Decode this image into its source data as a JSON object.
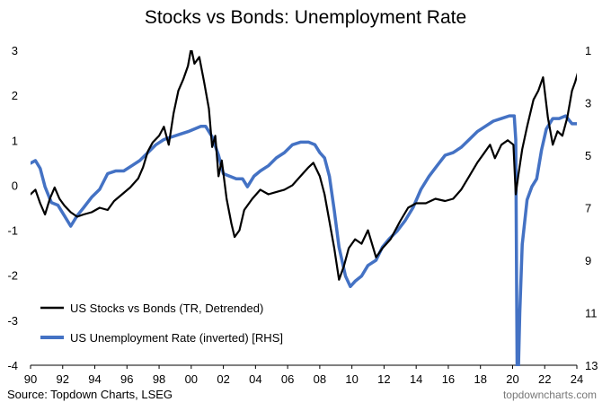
{
  "chart_data": {
    "type": "line",
    "title": "Stocks vs Bonds: Unemployment Rate",
    "source": "Source: Topdown Charts, LSEG",
    "brand": "topdowncharts.com",
    "xlim": [
      1990,
      2024
    ],
    "x_ticks": [
      1990,
      1992,
      1994,
      1996,
      1998,
      2000,
      2002,
      2004,
      2006,
      2008,
      2010,
      2012,
      2014,
      2016,
      2018,
      2020,
      2022,
      2024
    ],
    "x_tick_labels": [
      "90",
      "92",
      "94",
      "96",
      "98",
      "00",
      "02",
      "04",
      "06",
      "08",
      "10",
      "12",
      "14",
      "16",
      "18",
      "20",
      "22",
      "24"
    ],
    "ylim_left": [
      -4,
      3
    ],
    "y_ticks_left": [
      "3",
      "2",
      "1",
      "0",
      "-1",
      "-2",
      "-3",
      "-4"
    ],
    "ylim_right_inverted": [
      1,
      13
    ],
    "y_ticks_right": [
      "1",
      "3",
      "5",
      "7",
      "9",
      "11",
      "13"
    ],
    "grid": false,
    "legend_position": "bottom-left",
    "series": [
      {
        "name": "US Stocks vs Bonds (TR, Detrended)",
        "axis": "left",
        "color": "#000000",
        "points": [
          [
            1990.0,
            -0.2
          ],
          [
            1990.3,
            -0.1
          ],
          [
            1990.6,
            -0.4
          ],
          [
            1990.9,
            -0.65
          ],
          [
            1991.2,
            -0.3
          ],
          [
            1991.5,
            -0.05
          ],
          [
            1991.8,
            -0.3
          ],
          [
            1992.1,
            -0.45
          ],
          [
            1992.5,
            -0.6
          ],
          [
            1992.9,
            -0.7
          ],
          [
            1993.3,
            -0.65
          ],
          [
            1993.8,
            -0.6
          ],
          [
            1994.3,
            -0.5
          ],
          [
            1994.8,
            -0.55
          ],
          [
            1995.2,
            -0.35
          ],
          [
            1995.7,
            -0.2
          ],
          [
            1996.2,
            -0.05
          ],
          [
            1996.7,
            0.15
          ],
          [
            1997.0,
            0.4
          ],
          [
            1997.3,
            0.75
          ],
          [
            1997.6,
            0.95
          ],
          [
            1998.0,
            1.1
          ],
          [
            1998.3,
            1.3
          ],
          [
            1998.6,
            0.9
          ],
          [
            1998.9,
            1.6
          ],
          [
            1999.2,
            2.1
          ],
          [
            1999.5,
            2.35
          ],
          [
            1999.8,
            2.65
          ],
          [
            2000.0,
            3.05
          ],
          [
            2000.2,
            2.7
          ],
          [
            2000.5,
            2.85
          ],
          [
            2000.8,
            2.3
          ],
          [
            2001.1,
            1.7
          ],
          [
            2001.3,
            0.85
          ],
          [
            2001.5,
            1.1
          ],
          [
            2001.7,
            0.2
          ],
          [
            2001.9,
            0.55
          ],
          [
            2002.2,
            -0.3
          ],
          [
            2002.5,
            -0.85
          ],
          [
            2002.7,
            -1.15
          ],
          [
            2003.0,
            -1.0
          ],
          [
            2003.3,
            -0.55
          ],
          [
            2003.8,
            -0.3
          ],
          [
            2004.3,
            -0.1
          ],
          [
            2004.8,
            -0.2
          ],
          [
            2005.3,
            -0.15
          ],
          [
            2005.8,
            -0.1
          ],
          [
            2006.3,
            0.0
          ],
          [
            2006.8,
            0.2
          ],
          [
            2007.3,
            0.4
          ],
          [
            2007.6,
            0.5
          ],
          [
            2008.0,
            0.2
          ],
          [
            2008.3,
            -0.2
          ],
          [
            2008.6,
            -0.8
          ],
          [
            2008.9,
            -1.4
          ],
          [
            2009.2,
            -2.1
          ],
          [
            2009.5,
            -1.8
          ],
          [
            2009.8,
            -1.4
          ],
          [
            2010.2,
            -1.2
          ],
          [
            2010.6,
            -1.3
          ],
          [
            2011.0,
            -1.0
          ],
          [
            2011.5,
            -1.6
          ],
          [
            2011.9,
            -1.4
          ],
          [
            2012.4,
            -1.2
          ],
          [
            2013.0,
            -0.8
          ],
          [
            2013.5,
            -0.5
          ],
          [
            2014.0,
            -0.4
          ],
          [
            2014.6,
            -0.4
          ],
          [
            2015.2,
            -0.3
          ],
          [
            2015.8,
            -0.35
          ],
          [
            2016.3,
            -0.3
          ],
          [
            2016.8,
            -0.1
          ],
          [
            2017.3,
            0.2
          ],
          [
            2017.8,
            0.5
          ],
          [
            2018.2,
            0.7
          ],
          [
            2018.6,
            0.9
          ],
          [
            2018.9,
            0.6
          ],
          [
            2019.3,
            0.9
          ],
          [
            2019.7,
            1.0
          ],
          [
            2020.05,
            0.9
          ],
          [
            2020.2,
            -0.2
          ],
          [
            2020.35,
            0.2
          ],
          [
            2020.6,
            0.8
          ],
          [
            2020.9,
            1.3
          ],
          [
            2021.3,
            1.9
          ],
          [
            2021.6,
            2.1
          ],
          [
            2021.9,
            2.4
          ],
          [
            2022.2,
            1.5
          ],
          [
            2022.5,
            0.9
          ],
          [
            2022.8,
            1.2
          ],
          [
            2023.1,
            1.1
          ],
          [
            2023.4,
            1.5
          ],
          [
            2023.7,
            2.1
          ],
          [
            2023.9,
            2.3
          ],
          [
            2024.1,
            2.55
          ]
        ]
      },
      {
        "name": "US Unemployment Rate (inverted) [RHS]",
        "axis": "right",
        "color": "#4472c4",
        "points": [
          [
            1990.0,
            5.3
          ],
          [
            1990.3,
            5.2
          ],
          [
            1990.6,
            5.5
          ],
          [
            1990.9,
            6.2
          ],
          [
            1991.3,
            6.8
          ],
          [
            1991.7,
            6.9
          ],
          [
            1992.1,
            7.3
          ],
          [
            1992.5,
            7.7
          ],
          [
            1992.9,
            7.3
          ],
          [
            1993.3,
            7.0
          ],
          [
            1993.8,
            6.6
          ],
          [
            1994.3,
            6.3
          ],
          [
            1994.8,
            5.7
          ],
          [
            1995.3,
            5.6
          ],
          [
            1995.8,
            5.6
          ],
          [
            1996.3,
            5.4
          ],
          [
            1996.8,
            5.2
          ],
          [
            1997.3,
            4.9
          ],
          [
            1997.8,
            4.6
          ],
          [
            1998.3,
            4.4
          ],
          [
            1998.8,
            4.3
          ],
          [
            1999.3,
            4.2
          ],
          [
            1999.8,
            4.1
          ],
          [
            2000.2,
            4.0
          ],
          [
            2000.6,
            3.9
          ],
          [
            2000.9,
            3.9
          ],
          [
            2001.3,
            4.3
          ],
          [
            2001.7,
            5.0
          ],
          [
            2002.0,
            5.7
          ],
          [
            2002.4,
            5.8
          ],
          [
            2002.8,
            5.9
          ],
          [
            2003.2,
            5.9
          ],
          [
            2003.5,
            6.2
          ],
          [
            2003.9,
            5.8
          ],
          [
            2004.3,
            5.6
          ],
          [
            2004.8,
            5.4
          ],
          [
            2005.3,
            5.1
          ],
          [
            2005.8,
            4.9
          ],
          [
            2006.3,
            4.6
          ],
          [
            2006.8,
            4.5
          ],
          [
            2007.3,
            4.5
          ],
          [
            2007.7,
            4.6
          ],
          [
            2008.0,
            4.9
          ],
          [
            2008.3,
            5.1
          ],
          [
            2008.6,
            5.8
          ],
          [
            2008.9,
            7.1
          ],
          [
            2009.2,
            8.5
          ],
          [
            2009.6,
            9.6
          ],
          [
            2009.9,
            10.0
          ],
          [
            2010.2,
            9.8
          ],
          [
            2010.6,
            9.6
          ],
          [
            2011.0,
            9.2
          ],
          [
            2011.5,
            9.0
          ],
          [
            2011.9,
            8.5
          ],
          [
            2012.3,
            8.2
          ],
          [
            2012.8,
            7.9
          ],
          [
            2013.3,
            7.5
          ],
          [
            2013.8,
            7.0
          ],
          [
            2014.3,
            6.3
          ],
          [
            2014.8,
            5.8
          ],
          [
            2015.3,
            5.4
          ],
          [
            2015.8,
            5.0
          ],
          [
            2016.3,
            4.9
          ],
          [
            2016.8,
            4.7
          ],
          [
            2017.3,
            4.4
          ],
          [
            2017.8,
            4.1
          ],
          [
            2018.3,
            3.9
          ],
          [
            2018.8,
            3.7
          ],
          [
            2019.3,
            3.6
          ],
          [
            2019.8,
            3.5
          ],
          [
            2020.1,
            3.5
          ],
          [
            2020.2,
            4.4
          ],
          [
            2020.3,
            14.8
          ],
          [
            2020.45,
            11.0
          ],
          [
            2020.6,
            8.4
          ],
          [
            2020.9,
            6.7
          ],
          [
            2021.2,
            6.2
          ],
          [
            2021.5,
            5.9
          ],
          [
            2021.8,
            4.8
          ],
          [
            2022.1,
            4.0
          ],
          [
            2022.5,
            3.6
          ],
          [
            2022.9,
            3.6
          ],
          [
            2023.3,
            3.5
          ],
          [
            2023.7,
            3.8
          ],
          [
            2024.0,
            3.8
          ],
          [
            2024.1,
            3.8
          ]
        ]
      }
    ]
  }
}
